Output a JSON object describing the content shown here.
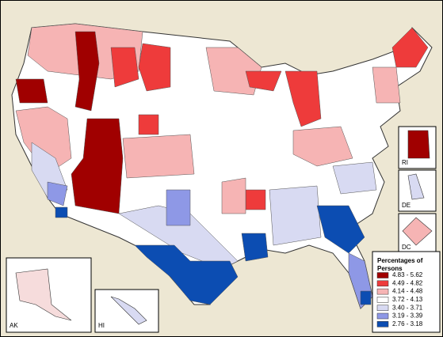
{
  "legend": {
    "title": "Percentages of Persons",
    "items": [
      {
        "label": "4.83 - 5.62",
        "color": "#a00000"
      },
      {
        "label": "4.49 - 4.82",
        "color": "#ee3b3b"
      },
      {
        "label": "4.14 - 4.48",
        "color": "#f6b4b4"
      },
      {
        "label": "3.72 - 4.13",
        "color": "#ffffff"
      },
      {
        "label": "3.40 - 3.71",
        "color": "#d8daf2"
      },
      {
        "label": "3.19 - 3.39",
        "color": "#8e98e6"
      },
      {
        "label": "2.76 - 3.18",
        "color": "#0c4db2"
      }
    ]
  },
  "insets": {
    "ak": "AK",
    "hi": "HI",
    "ri": "RI",
    "de": "DE",
    "dc": "DC"
  }
}
